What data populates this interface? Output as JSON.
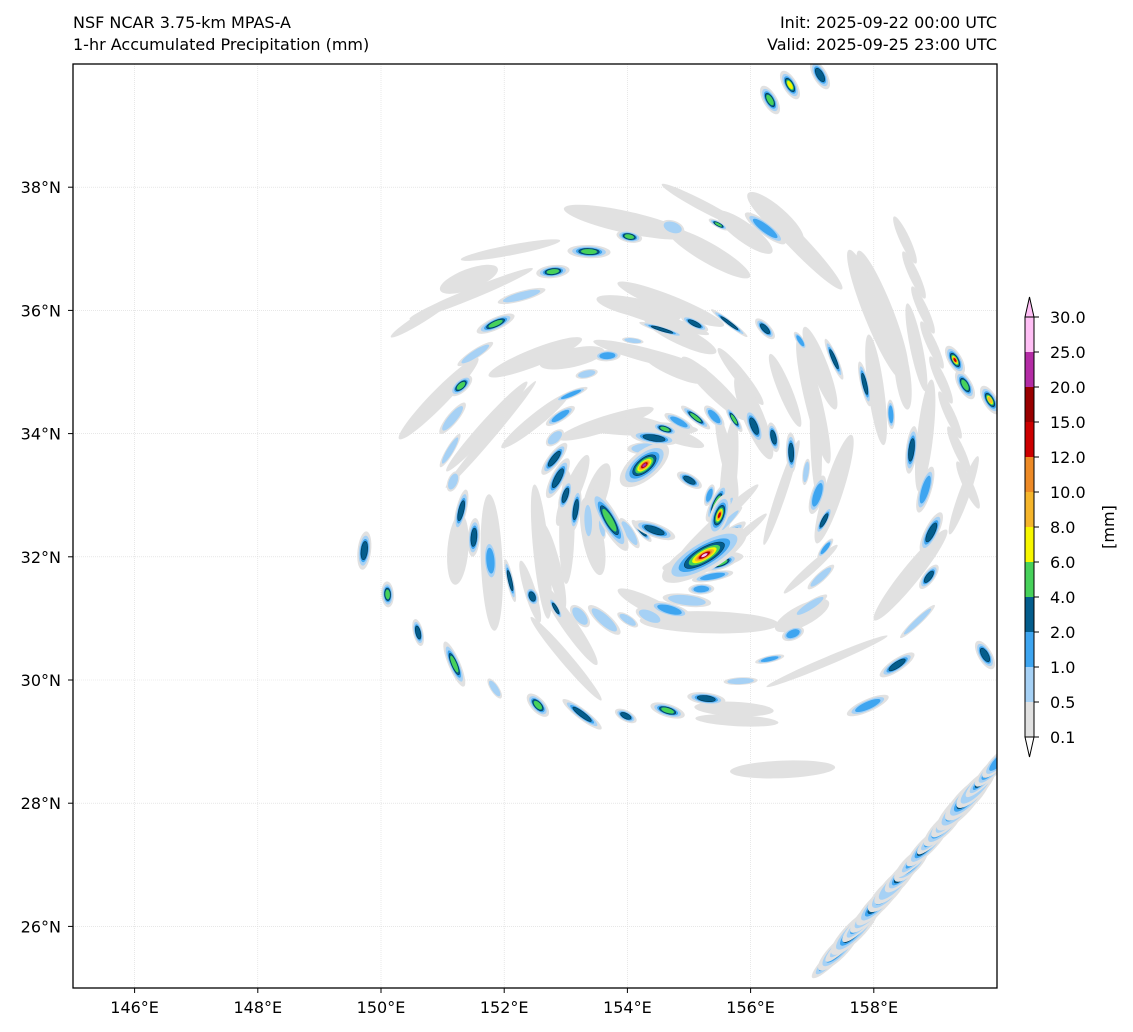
{
  "header": {
    "left_line1": "NSF NCAR 3.75-km MPAS-A",
    "left_line2": "1-hr Accumulated Precipitation (mm)",
    "right_line1": "Init: 2025-09-22 00:00 UTC",
    "right_line2": "Valid: 2025-09-25 23:00 UTC"
  },
  "map": {
    "lon_range": [
      145,
      160
    ],
    "lat_range": [
      25,
      40
    ],
    "lon_ticks": [
      146,
      148,
      150,
      152,
      154,
      156,
      158
    ],
    "lat_ticks": [
      26,
      28,
      30,
      32,
      34,
      36,
      38
    ],
    "lon_tick_labels": [
      "146°E",
      "148°E",
      "150°E",
      "152°E",
      "154°E",
      "156°E",
      "158°E"
    ],
    "lat_tick_labels": [
      "26°N",
      "28°N",
      "30°N",
      "32°N",
      "34°N",
      "36°N",
      "38°N"
    ],
    "gridlines": true,
    "storm_center": {
      "lon": 154.6,
      "lat": 33.0
    }
  },
  "colorbar": {
    "unit_label": "[mm]",
    "levels": [
      "0.1",
      "0.5",
      "1.0",
      "2.0",
      "4.0",
      "6.0",
      "8.0",
      "10.0",
      "12.0",
      "15.0",
      "20.0",
      "25.0",
      "30.0"
    ],
    "colors": [
      "#e1e1e1",
      "#a6d1f5",
      "#3ea5f0",
      "#045d8c",
      "#47d15a",
      "#f7f700",
      "#f5b52b",
      "#ed8a26",
      "#cc0000",
      "#990000",
      "#b42ca5",
      "#ffbff5"
    ],
    "extend": "both"
  }
}
